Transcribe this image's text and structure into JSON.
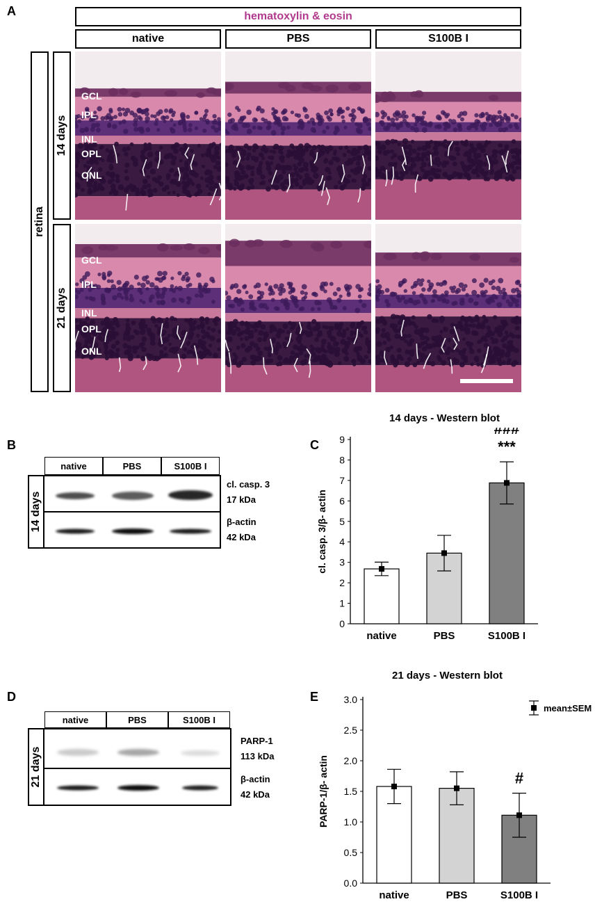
{
  "panel_a": {
    "letter": "A",
    "stain_title": "hematoxylin & eosin",
    "stain_title_color": "#b03a8c",
    "columns": [
      "native",
      "PBS",
      "S100B I"
    ],
    "tissue": "retina",
    "rows": [
      "14 days",
      "21 days"
    ],
    "layers": [
      "GCL",
      "IPL",
      "INL",
      "OPL",
      "ONL"
    ]
  },
  "panel_b": {
    "letter": "B",
    "timepoint": "14 days",
    "lanes": [
      "native",
      "PBS",
      "S100B I"
    ],
    "bands": [
      {
        "name": "cl. casp. 3",
        "size": "17 kDa"
      },
      {
        "name": "β-actin",
        "size": "42 kDa"
      }
    ]
  },
  "panel_d": {
    "letter": "D",
    "timepoint": "21 days",
    "lanes": [
      "native",
      "PBS",
      "S100B I"
    ],
    "bands": [
      {
        "name": "PARP-1",
        "size": "113 kDa"
      },
      {
        "name": "β-actin",
        "size": "42 kDa"
      }
    ]
  },
  "chart_data": [
    {
      "letter": "C",
      "type": "bar",
      "title": "14 days - Western blot",
      "xlabel": "",
      "ylabel": "cl. casp. 3/β- actin",
      "categories": [
        "native",
        "PBS",
        "S100B I"
      ],
      "values": [
        2.68,
        3.45,
        6.88
      ],
      "errors": [
        0.33,
        0.87,
        1.03
      ],
      "bar_colors": [
        "#ffffff",
        "#d3d3d3",
        "#808080"
      ],
      "ylim": [
        0,
        9
      ],
      "yticks": [
        "0",
        "1",
        "2",
        "3",
        "4",
        "5",
        "6",
        "7",
        "8",
        "9"
      ],
      "annotations": [
        {
          "category": "S100B I",
          "lines": [
            "###",
            "***"
          ]
        }
      ],
      "grid": false
    },
    {
      "letter": "E",
      "type": "bar",
      "title": "21 days - Western blot",
      "xlabel": "",
      "ylabel": "PARP-1/β- actin",
      "categories": [
        "native",
        "PBS",
        "S100B I"
      ],
      "values": [
        1.58,
        1.55,
        1.11
      ],
      "errors": [
        0.28,
        0.27,
        0.36
      ],
      "bar_colors": [
        "#ffffff",
        "#d3d3d3",
        "#808080"
      ],
      "ylim": [
        0,
        3.0
      ],
      "yticks": [
        "0.0",
        "0.5",
        "1.0",
        "1.5",
        "2.0",
        "2.5",
        "3.0"
      ],
      "annotations": [
        {
          "category": "S100B I",
          "lines": [
            "#"
          ]
        }
      ],
      "legend": {
        "label": "mean±SEM",
        "placement": "top-right"
      },
      "grid": false
    }
  ]
}
